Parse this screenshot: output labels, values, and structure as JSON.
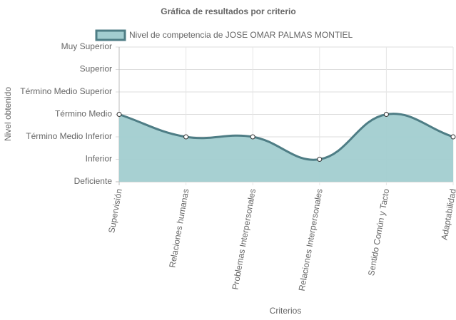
{
  "chart_data": {
    "type": "line",
    "title": "Gráfica de resultados por criterio",
    "xlabel": "Criterios",
    "ylabel": "Nivel obtenido",
    "categories": [
      "Supervisión",
      "Relaciones humanas",
      "Problemas Interpersonales",
      "Relaciones Interpersonales",
      "Sentido Común y Tacto",
      "Adaptabilidad"
    ],
    "series": [
      {
        "name": "Nivel de competencia de JOSE OMAR PALMAS MONTIEL",
        "color": "#4e7d85",
        "fill": "#a2cdd0",
        "values": [
          3,
          2,
          2,
          1,
          3,
          2
        ]
      }
    ],
    "ylim": [
      0,
      6
    ],
    "yticks": [
      {
        "value": 0,
        "label": "Deficiente"
      },
      {
        "value": 1,
        "label": "Inferior"
      },
      {
        "value": 2,
        "label": "Término Medio Inferior"
      },
      {
        "value": 3,
        "label": "Término Medio"
      },
      {
        "value": 4,
        "label": "Término Medio Superior"
      },
      {
        "value": 5,
        "label": "Superior"
      },
      {
        "value": 6,
        "label": "Muy Superior"
      }
    ],
    "grid": true
  }
}
